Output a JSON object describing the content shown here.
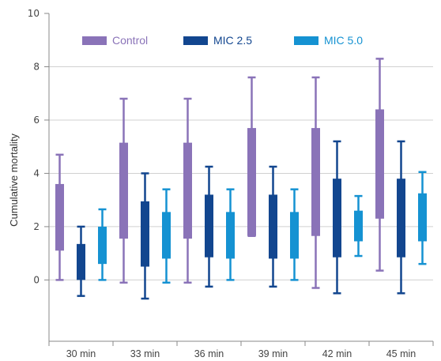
{
  "chart_data": {
    "type": "boxplot",
    "title": "",
    "xlabel": "",
    "ylabel": "Cumulative mortality",
    "ylim": [
      -2.3,
      10
    ],
    "yticks": [
      "0",
      "2",
      "4",
      "6",
      "8",
      "10"
    ],
    "grid": true,
    "legend_position": "top-left",
    "categories": [
      "30 min",
      "33 min",
      "36 min",
      "39 min",
      "42 min",
      "45 min"
    ],
    "series": [
      {
        "name": "Control",
        "color": "#8a73b8",
        "boxes": [
          {
            "min": 0.0,
            "q1": 1.1,
            "q3": 3.6,
            "max": 4.7
          },
          {
            "min": -0.1,
            "q1": 1.55,
            "q3": 5.15,
            "max": 6.8
          },
          {
            "min": -0.1,
            "q1": 1.55,
            "q3": 5.15,
            "max": 6.8
          },
          {
            "min": 1.65,
            "q1": 1.65,
            "q3": 5.7,
            "max": 7.6
          },
          {
            "min": -0.3,
            "q1": 1.65,
            "q3": 5.7,
            "max": 7.6
          },
          {
            "min": 0.35,
            "q1": 2.3,
            "q3": 6.4,
            "max": 8.3
          }
        ]
      },
      {
        "name": "MIC 2.5",
        "color": "#12468f",
        "boxes": [
          {
            "min": -0.6,
            "q1": 0.0,
            "q3": 1.35,
            "max": 2.0
          },
          {
            "min": -0.7,
            "q1": 0.5,
            "q3": 2.95,
            "max": 4.0
          },
          {
            "min": -0.25,
            "q1": 0.85,
            "q3": 3.2,
            "max": 4.25
          },
          {
            "min": -0.25,
            "q1": 0.8,
            "q3": 3.2,
            "max": 4.25
          },
          {
            "min": -0.5,
            "q1": 0.85,
            "q3": 3.8,
            "max": 5.2
          },
          {
            "min": -0.5,
            "q1": 0.85,
            "q3": 3.8,
            "max": 5.2
          }
        ]
      },
      {
        "name": "MIC 5.0",
        "color": "#1592d2",
        "boxes": [
          {
            "min": 0.0,
            "q1": 0.6,
            "q3": 2.0,
            "max": 2.65
          },
          {
            "min": -0.1,
            "q1": 0.8,
            "q3": 2.55,
            "max": 3.4
          },
          {
            "min": 0.0,
            "q1": 0.8,
            "q3": 2.55,
            "max": 3.4
          },
          {
            "min": 0.0,
            "q1": 0.8,
            "q3": 2.55,
            "max": 3.4
          },
          {
            "min": 0.9,
            "q1": 1.45,
            "q3": 2.6,
            "max": 3.15
          },
          {
            "min": 0.6,
            "q1": 1.45,
            "q3": 3.25,
            "max": 4.05
          }
        ]
      }
    ]
  }
}
